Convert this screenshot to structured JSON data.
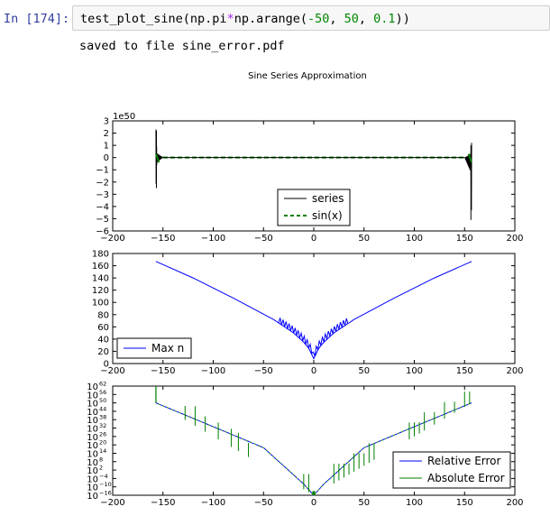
{
  "cell": {
    "prompt": "In [174]:",
    "code_tokens": [
      {
        "t": "test_plot_sine(np.pi",
        "c": ""
      },
      {
        "t": "*",
        "c": "kw"
      },
      {
        "t": "np.arange(",
        "c": ""
      },
      {
        "t": "-50",
        "c": "num"
      },
      {
        "t": ", ",
        "c": ""
      },
      {
        "t": "50",
        "c": "num"
      },
      {
        "t": ", ",
        "c": ""
      },
      {
        "t": "0.1",
        "c": "num"
      },
      {
        "t": "))",
        "c": ""
      }
    ],
    "output": "saved to file sine_error.pdf"
  },
  "figure": {
    "suptitle": "Sine Series Approximation"
  },
  "colors": {
    "series": "#000000",
    "sin": "#008000",
    "maxn": "#0000ff",
    "relative": "#0000ff",
    "absolute": "#008000",
    "prompt": "#303f9f"
  },
  "chart_data": [
    {
      "type": "line",
      "xlim": [
        -200,
        200
      ],
      "ylim": [
        -6,
        3
      ],
      "y_scale_note": "1e50",
      "xticks": [
        "−200",
        "−150",
        "−100",
        "−50",
        "0",
        "50",
        "100",
        "150",
        "200"
      ],
      "yticks": [
        "3",
        "2",
        "1",
        "0",
        "−1",
        "−2",
        "−3",
        "−4",
        "−5",
        "−6"
      ],
      "legend_position": "lower-center",
      "series": [
        {
          "name": "series",
          "style": "solid",
          "x": [
            -157,
            -156,
            -155,
            -150,
            0,
            150,
            155,
            156,
            157
          ],
          "y": [
            2.2,
            -2.5,
            1.0,
            0,
            0,
            0,
            -1.0,
            -5.1,
            1.0
          ]
        },
        {
          "name": "sin(x)",
          "style": "dashed",
          "x": [
            -157,
            157
          ],
          "y": [
            0,
            0
          ]
        }
      ]
    },
    {
      "type": "line",
      "xlim": [
        -200,
        200
      ],
      "ylim": [
        0,
        180
      ],
      "xticks": [
        "−200",
        "−150",
        "−100",
        "−50",
        "0",
        "50",
        "100",
        "150",
        "200"
      ],
      "yticks": [
        "180",
        "160",
        "140",
        "120",
        "100",
        "80",
        "60",
        "40",
        "20",
        "0"
      ],
      "legend_position": "lower-left",
      "series": [
        {
          "name": "Max n",
          "x": [
            -157,
            -120,
            -80,
            -40,
            -20,
            -10,
            -5,
            0,
            5,
            10,
            20,
            40,
            80,
            120,
            157
          ],
          "y": [
            167,
            140,
            107,
            72,
            50,
            35,
            25,
            8,
            25,
            35,
            50,
            72,
            107,
            140,
            167
          ]
        }
      ]
    },
    {
      "type": "line",
      "xlim": [
        -200,
        200
      ],
      "ylim": [
        -16,
        62
      ],
      "y_scale": "log",
      "xticks": [
        "−200",
        "−150",
        "−100",
        "−50",
        "0",
        "50",
        "100",
        "150",
        "200"
      ],
      "yticks_exp": [
        "62",
        "56",
        "50",
        "44",
        "38",
        "32",
        "26",
        "20",
        "14",
        "8",
        "2",
        "−4",
        "−10",
        "−16"
      ],
      "ytick_base": "10",
      "legend_position": "lower-right",
      "series": [
        {
          "name": "Relative Error",
          "x": [
            -157,
            -100,
            -50,
            -10,
            0,
            10,
            50,
            100,
            157
          ],
          "y": [
            50,
            33,
            18,
            -8,
            -16,
            -8,
            18,
            33,
            50
          ]
        },
        {
          "name": "Absolute Error",
          "x": [
            -157,
            -100,
            -50,
            -10,
            0,
            10,
            50,
            100,
            157
          ],
          "y": [
            50,
            33,
            18,
            -8,
            -16,
            -8,
            18,
            33,
            50
          ]
        }
      ]
    }
  ]
}
